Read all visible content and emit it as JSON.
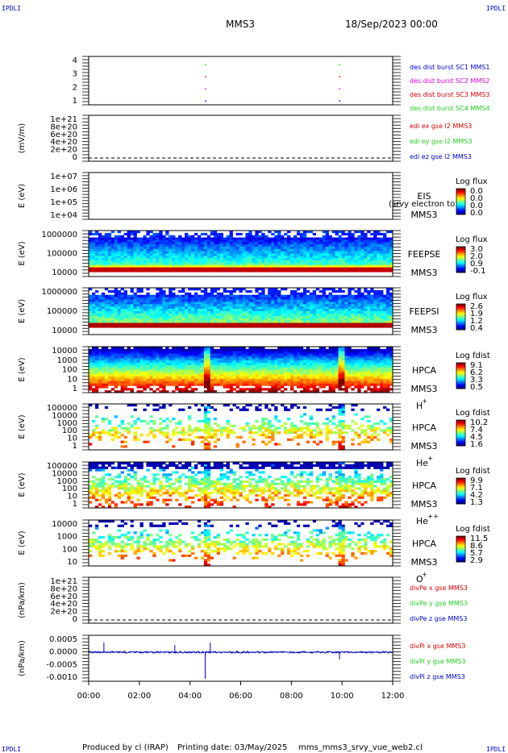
{
  "header": {
    "corner_tl": "IPDLI",
    "corner_tr": "IPDLI",
    "corner_bl": "IPDLI",
    "corner_br": "IPDLI",
    "spacecraft": "MMS3",
    "date": "18/Sep/2023 00:00"
  },
  "footer": {
    "produced": "Produced by cl (IRAP)",
    "printing": "Printing date: 03/May/2025",
    "file": "mms_mms3_srvy_vue_web2.cl"
  },
  "colors": {
    "black": "#000000",
    "red": "#d40000",
    "green": "#22cc22",
    "blue": "#0000cc",
    "magenta": "#dd00dd"
  },
  "chart_data": {
    "type": "heatmap",
    "time_axis": {
      "range": [
        "00:00",
        "12:00"
      ],
      "ticks": [
        "00:00",
        "02:00",
        "04:00",
        "06:00",
        "08:00",
        "10:00",
        "12:00"
      ]
    },
    "panels": [
      {
        "id": "burst",
        "type": "scatter",
        "yticks": [
          "4",
          "3",
          "2",
          "1"
        ],
        "legend": [
          {
            "text": "des dist burst SC1 MMS1",
            "color": "#0000cc"
          },
          {
            "text": "des dist burst SC2 MMS2",
            "color": "#dd00dd"
          },
          {
            "text": "des dist burst SC3 MMS3",
            "color": "#d40000"
          },
          {
            "text": "des dist burst SC4 MMS4",
            "color": "#22cc22"
          }
        ],
        "markers_hours": [
          4.6,
          9.9
        ]
      },
      {
        "id": "edi",
        "type": "line",
        "ylabel": "(mV/m)",
        "yticks": [
          "1e+21",
          "8e+20",
          "6e+20",
          "4e+20",
          "2e+20",
          "0"
        ],
        "legend": [
          {
            "text": "edi ex gse l2 MMS3",
            "color": "#d40000"
          },
          {
            "text": "edi ey gse l2 MMS3",
            "color": "#22cc22"
          },
          {
            "text": "edi ez gse l2 MMS3",
            "color": "#0000cc"
          }
        ]
      },
      {
        "id": "eis",
        "type": "heatmap",
        "ylabel": "E (eV)",
        "yticks": [
          "1e+07",
          "1e+06",
          "1e+05",
          "1e+04"
        ],
        "instrument": "EIS",
        "species": "(srvy electron to",
        "sc": "MMS3",
        "cbar_title": "Log flux",
        "cbar_values": [
          "0.0",
          "0.0",
          "0.0",
          "0.0"
        ]
      },
      {
        "id": "feepse",
        "type": "heatmap",
        "ylabel": "E (eV)",
        "yticks": [
          "1000000",
          "100000",
          "10000"
        ],
        "instrument": "FEEPSE",
        "sc": "MMS3",
        "cbar_title": "Log flux",
        "cbar_values": [
          "3.0",
          "2.0",
          "0.9",
          "-0.1"
        ]
      },
      {
        "id": "feepsi",
        "type": "heatmap",
        "ylabel": "E (eV)",
        "yticks": [
          "1000000",
          "100000",
          "10000"
        ],
        "instrument": "FEEPSI",
        "sc": "MMS3",
        "cbar_title": "Log flux",
        "cbar_values": [
          "2.6",
          "1.9",
          "1.2",
          "0.4"
        ]
      },
      {
        "id": "hpca_h",
        "type": "heatmap",
        "ylabel": "E (eV)",
        "yticks": [
          "10000",
          "1000",
          "100",
          "10",
          "1"
        ],
        "instrument": "HPCA",
        "sc": "MMS3",
        "species": "H",
        "charge": "+",
        "cbar_title": "Log fdist",
        "cbar_values": [
          "9.1",
          "6.2",
          "3.3",
          "0.5"
        ]
      },
      {
        "id": "hpca_he",
        "type": "heatmap",
        "ylabel": "E (eV)",
        "yticks": [
          "100000",
          "10000",
          "1000",
          "100",
          "10",
          "1"
        ],
        "instrument": "HPCA",
        "sc": "MMS3",
        "species": "He",
        "charge": "+",
        "cbar_title": "Log fdist",
        "cbar_values": [
          "10.2",
          "7.4",
          "4.5",
          "1.6"
        ]
      },
      {
        "id": "hpca_hepp",
        "type": "heatmap",
        "ylabel": "E (eV)",
        "yticks": [
          "100000",
          "10000",
          "1000",
          "100",
          "10",
          "1"
        ],
        "instrument": "HPCA",
        "sc": "MMS3",
        "species": "He",
        "charge": "++",
        "cbar_title": "Log fdist",
        "cbar_values": [
          "9.9",
          "7.1",
          "4.2",
          "1.3"
        ]
      },
      {
        "id": "hpca_o",
        "type": "heatmap",
        "ylabel": "E (eV)",
        "yticks": [
          "10000",
          "1000",
          "100",
          "10"
        ],
        "instrument": "HPCA",
        "sc": "MMS3",
        "species": "O",
        "charge": "+",
        "cbar_title": "Log fdist",
        "cbar_values": [
          "11.5",
          "8.6",
          "5.7",
          "2.9"
        ]
      },
      {
        "id": "divpe",
        "type": "line",
        "ylabel": "(nPa/km)",
        "yticks": [
          "1e+21",
          "8e+20",
          "6e+20",
          "4e+20",
          "2e+20",
          "0"
        ],
        "legend": [
          {
            "text": "divPe x gse MMS3",
            "color": "#d40000"
          },
          {
            "text": "divPe y gse MMS3",
            "color": "#22cc22"
          },
          {
            "text": "divPe z gse MMS3",
            "color": "#0000cc"
          }
        ]
      },
      {
        "id": "divpi",
        "type": "line",
        "ylabel": "(nPa/km)",
        "yticks": [
          "0.0005",
          "0.0000",
          "-0.0005",
          "-0.0010"
        ],
        "yrange": [
          -0.0012,
          0.0007
        ],
        "legend": [
          {
            "text": "divPi x gse MMS3",
            "color": "#d40000"
          },
          {
            "text": "divPi y gse MMS3",
            "color": "#22cc22"
          },
          {
            "text": "divPi z gse MMS3",
            "color": "#0000cc"
          }
        ],
        "spikes": [
          {
            "hour": 0.6,
            "value": 0.0004
          },
          {
            "hour": 3.4,
            "value": 0.0003
          },
          {
            "hour": 4.6,
            "value": -0.0011
          },
          {
            "hour": 4.8,
            "value": 0.0004
          },
          {
            "hour": 9.9,
            "value": -0.0003
          }
        ]
      }
    ]
  }
}
